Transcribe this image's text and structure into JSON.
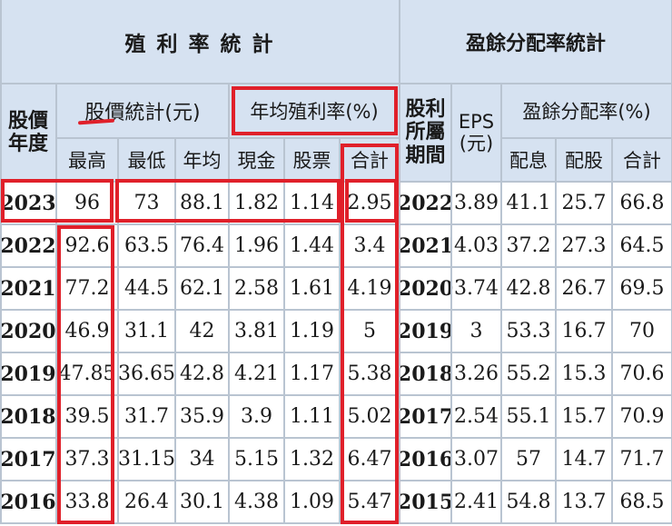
{
  "headers": {
    "yield_section": "殖 利 率 統 計",
    "payout_section": "盈餘分配率統計",
    "year_col": "股價年度",
    "price_group": "股價統計(元)",
    "yield_group": "年均殖利率(%)",
    "eps_year_col": "股利所屬期間",
    "eps_col": "EPS(元)",
    "payout_group": "盈餘分配率(%)",
    "high": "最高",
    "low": "最低",
    "avg": "年均",
    "cash": "現金",
    "stock": "股票",
    "yield_total": "合計",
    "payout_cash": "配息",
    "payout_stock": "配股",
    "payout_total": "合計"
  },
  "rows": [
    {
      "year": "2023",
      "high": "96",
      "low": "73",
      "avg": "88.1",
      "cash": "1.82",
      "stock": "1.14",
      "total": "2.95",
      "eps_year": "2022",
      "eps": "3.89",
      "p_cash": "41.1",
      "p_stock": "25.7",
      "p_total": "66.8"
    },
    {
      "year": "2022",
      "high": "92.6",
      "low": "63.5",
      "avg": "76.4",
      "cash": "1.96",
      "stock": "1.44",
      "total": "3.4",
      "eps_year": "2021",
      "eps": "4.03",
      "p_cash": "37.2",
      "p_stock": "27.3",
      "p_total": "64.5"
    },
    {
      "year": "2021",
      "high": "77.2",
      "low": "44.5",
      "avg": "62.1",
      "cash": "2.58",
      "stock": "1.61",
      "total": "4.19",
      "eps_year": "2020",
      "eps": "3.74",
      "p_cash": "42.8",
      "p_stock": "26.7",
      "p_total": "69.5"
    },
    {
      "year": "2020",
      "high": "46.9",
      "low": "31.1",
      "avg": "42",
      "cash": "3.81",
      "stock": "1.19",
      "total": "5",
      "eps_year": "2019",
      "eps": "3",
      "p_cash": "53.3",
      "p_stock": "16.7",
      "p_total": "70"
    },
    {
      "year": "2019",
      "high": "47.85",
      "low": "36.65",
      "avg": "42.8",
      "cash": "4.21",
      "stock": "1.17",
      "total": "5.38",
      "eps_year": "2018",
      "eps": "3.26",
      "p_cash": "55.2",
      "p_stock": "15.3",
      "p_total": "70.6"
    },
    {
      "year": "2018",
      "high": "39.5",
      "low": "31.7",
      "avg": "35.9",
      "cash": "3.9",
      "stock": "1.11",
      "total": "5.02",
      "eps_year": "2017",
      "eps": "2.54",
      "p_cash": "55.1",
      "p_stock": "15.7",
      "p_total": "70.9"
    },
    {
      "year": "2017",
      "high": "37.3",
      "low": "31.15",
      "avg": "34",
      "cash": "5.15",
      "stock": "1.32",
      "total": "6.47",
      "eps_year": "2016",
      "eps": "3.07",
      "p_cash": "57",
      "p_stock": "14.7",
      "p_total": "71.7"
    },
    {
      "year": "2016",
      "high": "33.8",
      "low": "26.4",
      "avg": "30.1",
      "cash": "4.38",
      "stock": "1.09",
      "total": "5.47",
      "eps_year": "2015",
      "eps": "2.41",
      "p_cash": "54.8",
      "p_stock": "13.7",
      "p_total": "68.5"
    }
  ],
  "colors": {
    "header_bg": "#d6e2f1",
    "grid": "#b9c4d1",
    "highlight": "#e0202a"
  }
}
